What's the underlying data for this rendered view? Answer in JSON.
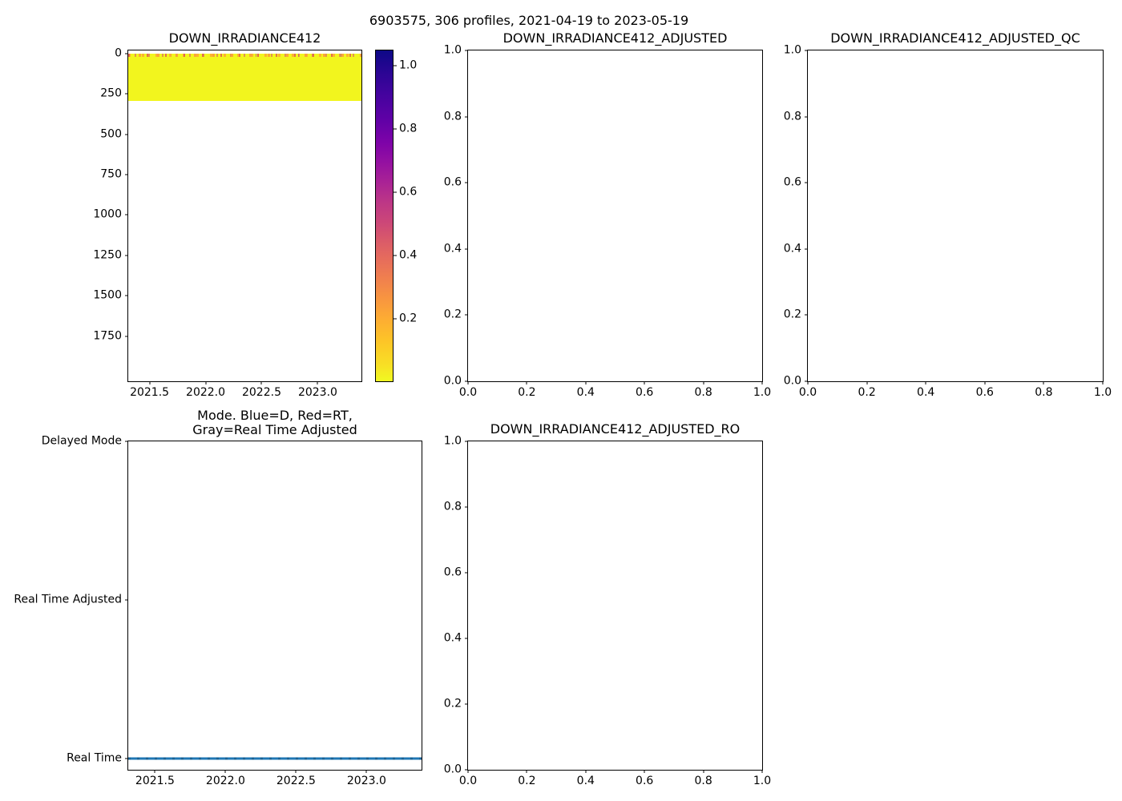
{
  "figure": {
    "title": "6903575, 306 profiles, 2021-04-19 to 2023-05-19"
  },
  "colorbar": {
    "cmap": "plasma reversed",
    "top_color": "#0d0887",
    "bottom_color": "#f0f921",
    "vlim": [
      1.05,
      0.0
    ],
    "ticks": [
      {
        "v": 1.0,
        "label": "1.0"
      },
      {
        "v": 0.8,
        "label": "0.8"
      },
      {
        "v": 0.6,
        "label": "0.6"
      },
      {
        "v": 0.4,
        "label": "0.4"
      },
      {
        "v": 0.2,
        "label": "0.2"
      }
    ]
  },
  "chart_data": [
    {
      "id": "down-irradiance412",
      "type": "heatmap",
      "title": "DOWN_IRRADIANCE412",
      "xlim": [
        2021.31,
        2023.39
      ],
      "ylim": [
        -20,
        2030
      ],
      "xticks": [
        2021.5,
        2022.0,
        2022.5,
        2023.0
      ],
      "xtick_labels": [
        "2021.5",
        "2022.0",
        "2022.5",
        "2023.0"
      ],
      "yticks": [
        0,
        250,
        500,
        750,
        1000,
        1250,
        1500,
        1750
      ],
      "ytick_labels": [
        "0",
        "250",
        "500",
        "750",
        "1000",
        "1250",
        "1500",
        "1750"
      ],
      "heat": {
        "depth_min": 0,
        "depth_max": 295,
        "color": "#f2f51e",
        "surface_band_depth": 15,
        "surface_band_colors": [
          "#e16462",
          "#fca636",
          "#d8576b"
        ],
        "value_range": [
          0.05,
          1.0
        ]
      }
    },
    {
      "id": "down-irradiance412-adjusted",
      "type": "empty",
      "title": "DOWN_IRRADIANCE412_ADJUSTED",
      "xlim": [
        0,
        1
      ],
      "ylim": [
        1,
        0
      ],
      "xticks": [
        0,
        0.2,
        0.4,
        0.6,
        0.8,
        1
      ],
      "xtick_labels": [
        "0.0",
        "0.2",
        "0.4",
        "0.6",
        "0.8",
        "1.0"
      ],
      "yticks": [
        1,
        0.8,
        0.6,
        0.4,
        0.2,
        0
      ],
      "ytick_labels": [
        "1.0",
        "0.8",
        "0.6",
        "0.4",
        "0.2",
        "0.0"
      ]
    },
    {
      "id": "down-irradiance412-adjusted-qc",
      "type": "empty",
      "title": "DOWN_IRRADIANCE412_ADJUSTED_QC",
      "xlim": [
        0,
        1
      ],
      "ylim": [
        1,
        0
      ],
      "xticks": [
        0,
        0.2,
        0.4,
        0.6,
        0.8,
        1
      ],
      "xtick_labels": [
        "0.0",
        "0.2",
        "0.4",
        "0.6",
        "0.8",
        "1.0"
      ],
      "yticks": [
        1,
        0.8,
        0.6,
        0.4,
        0.2,
        0
      ],
      "ytick_labels": [
        "1.0",
        "0.8",
        "0.6",
        "0.4",
        "0.2",
        "0.0"
      ]
    },
    {
      "id": "mode",
      "type": "line",
      "title": "Mode. Blue=D, Red=RT, Gray=Real Time Adjusted",
      "title_line1": "Mode. Blue=D, Red=RT,",
      "title_line2": "Gray=Real Time Adjusted",
      "xlim": [
        2021.31,
        2023.39
      ],
      "ylim": [
        2,
        -0.072
      ],
      "xticks": [
        2021.5,
        2022.0,
        2022.5,
        2023.0
      ],
      "xtick_labels": [
        "2021.5",
        "2022.0",
        "2022.5",
        "2023.0"
      ],
      "yticks": [
        2,
        1,
        0
      ],
      "ytick_labels": [
        "Delayed Mode",
        "Real Time Adjusted",
        "Real Time"
      ],
      "line": {
        "y": 0,
        "color": "#1f77b4",
        "meaning": "all profiles are Real Time mode across 2021.31 to 2023.39"
      }
    },
    {
      "id": "down-irradiance412-adjusted-ro",
      "type": "empty",
      "title": "DOWN_IRRADIANCE412_ADJUSTED_RO",
      "xlim": [
        0,
        1
      ],
      "ylim": [
        1,
        0
      ],
      "xticks": [
        0,
        0.2,
        0.4,
        0.6,
        0.8,
        1
      ],
      "xtick_labels": [
        "0.0",
        "0.2",
        "0.4",
        "0.6",
        "0.8",
        "1.0"
      ],
      "yticks": [
        1,
        0.8,
        0.6,
        0.4,
        0.2,
        0
      ],
      "ytick_labels": [
        "1.0",
        "0.8",
        "0.6",
        "0.4",
        "0.2",
        "0.0"
      ]
    }
  ]
}
